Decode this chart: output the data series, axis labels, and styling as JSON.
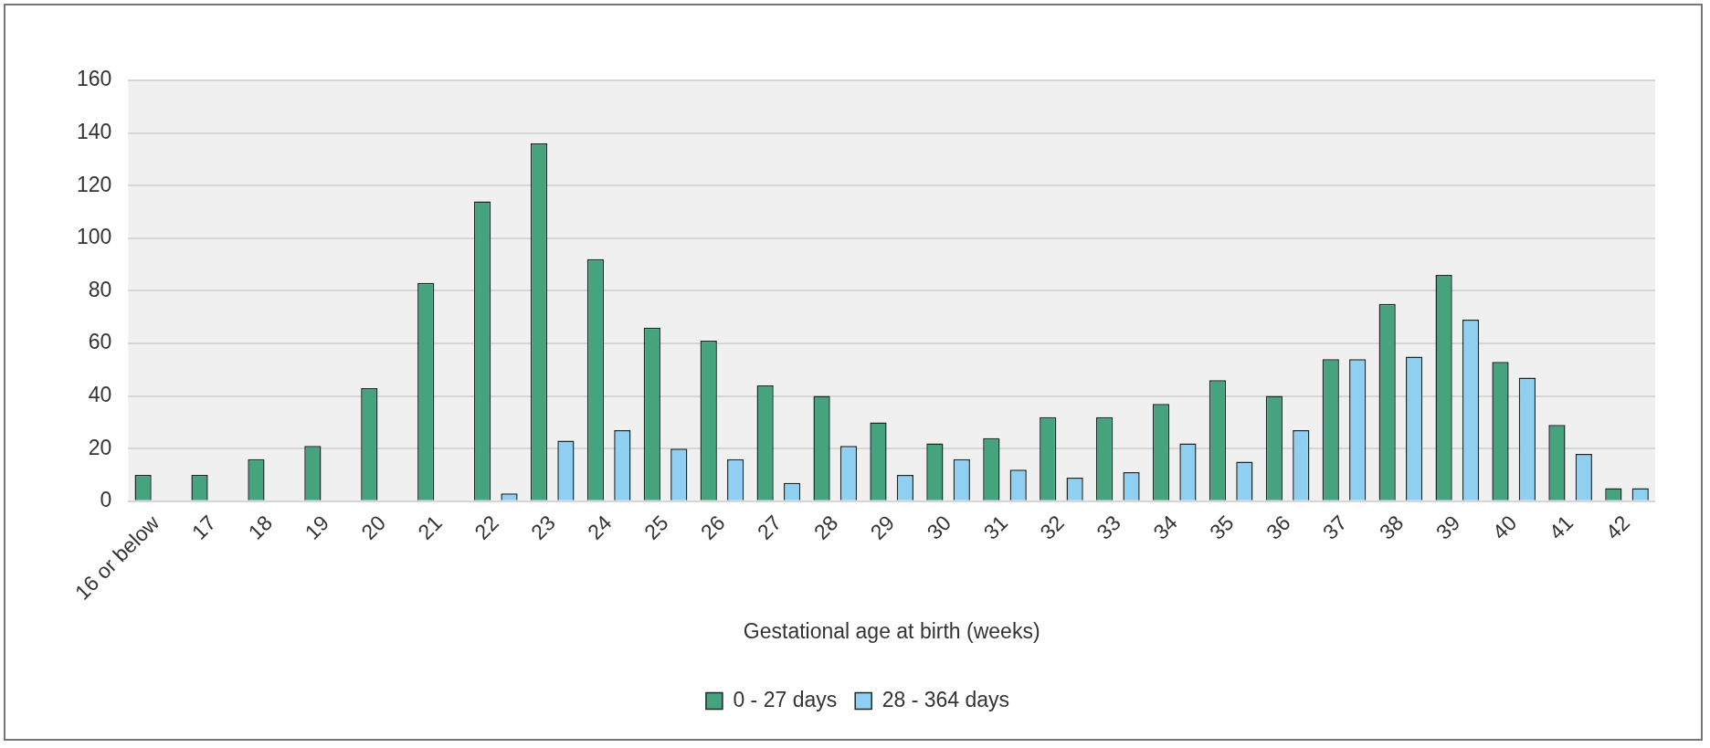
{
  "chart_data": {
    "type": "bar",
    "xlabel": "Gestational age at birth (weeks)",
    "categories": [
      "16 or below",
      "17",
      "18",
      "19",
      "20",
      "21",
      "22",
      "23",
      "24",
      "25",
      "26",
      "27",
      "28",
      "29",
      "30",
      "31",
      "32",
      "33",
      "34",
      "35",
      "36",
      "37",
      "38",
      "39",
      "40",
      "41",
      "42"
    ],
    "series": [
      {
        "name": "0 - 27 days",
        "color": "#45a47e",
        "values": [
          10,
          10,
          16,
          21,
          43,
          83,
          114,
          136,
          92,
          66,
          61,
          44,
          40,
          30,
          22,
          24,
          32,
          32,
          37,
          46,
          40,
          54,
          75,
          86,
          53,
          29,
          5
        ]
      },
      {
        "name": "28 - 364 days",
        "color": "#8fd0f2",
        "values": [
          null,
          null,
          null,
          null,
          null,
          null,
          3,
          23,
          27,
          20,
          16,
          7,
          21,
          10,
          16,
          12,
          9,
          11,
          22,
          15,
          27,
          54,
          55,
          69,
          47,
          18,
          5
        ]
      }
    ],
    "ylim": [
      0,
      160
    ],
    "yticks": [
      0,
      20,
      40,
      60,
      80,
      100,
      120,
      140,
      160
    ],
    "grid": "y",
    "legend": "bottom"
  }
}
